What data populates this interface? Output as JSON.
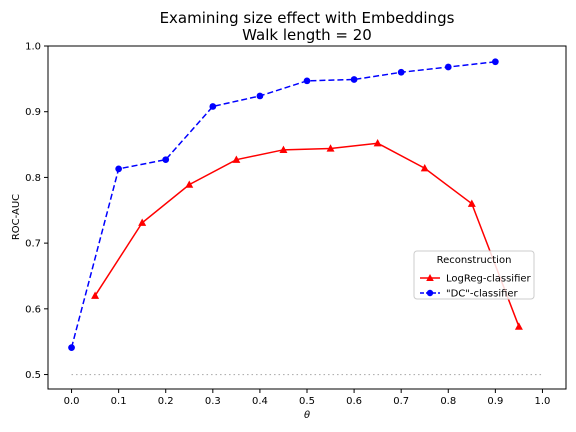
{
  "chart_data": {
    "type": "line",
    "title": "Examining size effect with Embeddings",
    "subtitle": "Walk length = 20",
    "xlabel": "θ",
    "ylabel": "ROC-AUC",
    "xlim": [
      -0.05,
      1.05
    ],
    "ylim": [
      0.478,
      1.0
    ],
    "xticks": [
      "0.0",
      "0.1",
      "0.2",
      "0.3",
      "0.4",
      "0.5",
      "0.6",
      "0.7",
      "0.8",
      "0.9",
      "1.0"
    ],
    "yticks": [
      "0.5",
      "0.6",
      "0.7",
      "0.8",
      "0.9",
      "1.0"
    ],
    "legend": {
      "title": "Reconstruction",
      "placement": "center-right"
    },
    "grid": false,
    "series": [
      {
        "name": "LogReg-classifier",
        "color": "#ff0000",
        "marker": "triangle",
        "linestyle": "solid",
        "x": [
          0.05,
          0.15,
          0.25,
          0.35,
          0.45,
          0.55,
          0.65,
          0.75,
          0.85,
          0.95
        ],
        "y": [
          0.62,
          0.731,
          0.789,
          0.827,
          0.842,
          0.844,
          0.852,
          0.814,
          0.76,
          0.573
        ]
      },
      {
        "name": "\"DC\"-classifier",
        "color": "#0000ff",
        "marker": "circle",
        "linestyle": "dashed",
        "x": [
          0.0,
          0.1,
          0.2,
          0.3,
          0.4,
          0.5,
          0.6,
          0.7,
          0.8,
          0.9
        ],
        "y": [
          0.541,
          0.813,
          0.827,
          0.908,
          0.924,
          0.947,
          0.949,
          0.96,
          0.968,
          0.976
        ]
      },
      {
        "name": "",
        "color": "#b0b0b0",
        "marker": "none",
        "linestyle": "dotted",
        "x": [
          0.0,
          1.0
        ],
        "y": [
          0.5,
          0.5
        ]
      }
    ]
  }
}
